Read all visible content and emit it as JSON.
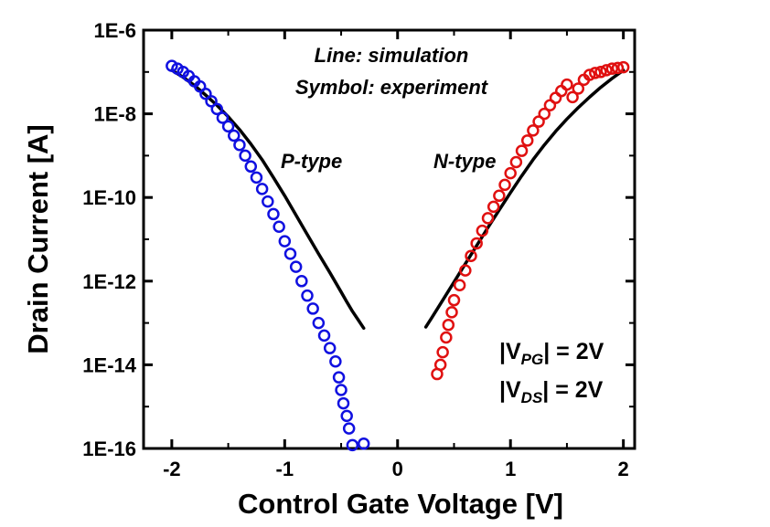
{
  "chart_data": {
    "type": "scatter",
    "title": "",
    "xlabel": "Control Gate Voltage [V]",
    "ylabel": "Drain Current [A]",
    "xlim": [
      -2.25,
      2.1
    ],
    "ylim": [
      1e-16,
      1e-06
    ],
    "y_scale": "log",
    "grid": false,
    "x_ticks": [
      {
        "value": -2,
        "label": "-2"
      },
      {
        "value": -1,
        "label": "-1"
      },
      {
        "value": 0,
        "label": "0"
      },
      {
        "value": 1,
        "label": "1"
      },
      {
        "value": 2,
        "label": "2"
      }
    ],
    "y_ticks": [
      {
        "value": 1e-06,
        "label": "1E-6"
      },
      {
        "value": 1e-08,
        "label": "1E-8"
      },
      {
        "value": 1e-10,
        "label": "1E-10"
      },
      {
        "value": 1e-12,
        "label": "1E-12"
      },
      {
        "value": 1e-14,
        "label": "1E-14"
      },
      {
        "value": 1e-16,
        "label": "1E-16"
      }
    ],
    "annotations": {
      "legend_line1": "Line: simulation",
      "legend_line2": "Symbol: experiment",
      "p_type": "P-type",
      "n_type": "N-type",
      "vpg_prefix": "|V",
      "vpg_sub": "PG",
      "vpg_suffix": "| = 2V",
      "vds_prefix": "|V",
      "vds_sub": "DS",
      "vds_suffix": "| = 2V"
    },
    "series": [
      {
        "name": "P-type",
        "kind": "experiment",
        "marker": "open-circle",
        "color": "#1010e0",
        "x": [
          -2.0,
          -1.95,
          -1.9,
          -1.85,
          -1.8,
          -1.75,
          -1.7,
          -1.65,
          -1.6,
          -1.55,
          -1.5,
          -1.45,
          -1.4,
          -1.35,
          -1.3,
          -1.25,
          -1.2,
          -1.15,
          -1.1,
          -1.05,
          -1.0,
          -0.95,
          -0.9,
          -0.85,
          -0.8,
          -0.75,
          -0.7,
          -0.65,
          -0.6,
          -0.55,
          -0.52,
          -0.5,
          -0.48,
          -0.45,
          -0.43,
          -0.4,
          -0.3
        ],
        "y": [
          1.4e-07,
          1.2e-07,
          1e-07,
          8e-08,
          6e-08,
          4.5e-08,
          3e-08,
          2e-08,
          1.3e-08,
          8e-09,
          5e-09,
          3e-09,
          1.8e-09,
          1e-09,
          5.5e-10,
          3e-10,
          1.6e-10,
          8e-11,
          4e-11,
          2e-11,
          9e-12,
          4.5e-12,
          2.2e-12,
          1e-12,
          4.5e-13,
          2.2e-13,
          1e-13,
          5e-14,
          2.5e-14,
          1.2e-14,
          5e-15,
          2.5e-15,
          1.2e-15,
          6e-16,
          3e-16,
          1.2e-16,
          1.3e-16
        ]
      },
      {
        "name": "N-type",
        "kind": "experiment",
        "marker": "open-circle",
        "color": "#e01010",
        "x": [
          0.35,
          0.38,
          0.4,
          0.43,
          0.45,
          0.48,
          0.5,
          0.55,
          0.6,
          0.65,
          0.7,
          0.75,
          0.8,
          0.85,
          0.9,
          0.95,
          1.0,
          1.05,
          1.1,
          1.15,
          1.2,
          1.25,
          1.3,
          1.35,
          1.4,
          1.45,
          1.5,
          1.55,
          1.6,
          1.65,
          1.7,
          1.75,
          1.8,
          1.85,
          1.9,
          1.95,
          2.0
        ],
        "y": [
          6e-15,
          1e-14,
          2e-14,
          4.5e-14,
          9e-14,
          1.8e-13,
          3.5e-13,
          8e-13,
          1.8e-12,
          4e-12,
          8e-12,
          1.6e-11,
          3.2e-11,
          6e-11,
          1.1e-10,
          2e-10,
          3.8e-10,
          7e-10,
          1.3e-09,
          2.3e-09,
          4e-09,
          6.5e-09,
          1e-08,
          1.6e-08,
          2.4e-08,
          3.5e-08,
          5e-08,
          2.5e-08,
          4e-08,
          6.5e-08,
          8.5e-08,
          9.5e-08,
          1e-07,
          1.1e-07,
          1.2e-07,
          1.25e-07,
          1.3e-07
        ]
      },
      {
        "name": "P-type",
        "kind": "simulation",
        "marker": "line",
        "color": "#000000",
        "x": [
          -2.0,
          -1.9,
          -1.8,
          -1.7,
          -1.6,
          -1.5,
          -1.4,
          -1.3,
          -1.2,
          -1.1,
          -1.0,
          -0.9,
          -0.8,
          -0.7,
          -0.6,
          -0.5,
          -0.45,
          -0.4,
          -0.35,
          -0.3
        ],
        "y": [
          1.1e-07,
          7.5e-08,
          4.8e-08,
          2.8e-08,
          1.6e-08,
          8.5e-09,
          4.2e-09,
          1.9e-09,
          8e-10,
          3e-10,
          1.1e-10,
          3.8e-11,
          1.3e-11,
          4.5e-12,
          1.6e-12,
          5.5e-13,
          3.2e-13,
          1.9e-13,
          1.2e-13,
          7.5e-14
        ]
      },
      {
        "name": "N-type",
        "kind": "simulation",
        "marker": "line",
        "color": "#000000",
        "x": [
          0.25,
          0.3,
          0.4,
          0.5,
          0.6,
          0.7,
          0.8,
          0.9,
          1.0,
          1.1,
          1.2,
          1.3,
          1.4,
          1.5,
          1.6,
          1.7,
          1.8,
          1.9,
          2.0
        ],
        "y": [
          8e-14,
          1.3e-13,
          3.5e-13,
          9.5e-13,
          2.6e-12,
          7e-12,
          1.9e-11,
          5e-11,
          1.3e-10,
          3.3e-10,
          8e-10,
          1.8e-09,
          3.8e-09,
          7.5e-09,
          1.4e-08,
          2.5e-08,
          4.3e-08,
          7e-08,
          1.1e-07
        ]
      }
    ],
    "colors": {
      "p_type": "#1010e0",
      "n_type": "#e01010",
      "simulation": "#000000"
    }
  }
}
